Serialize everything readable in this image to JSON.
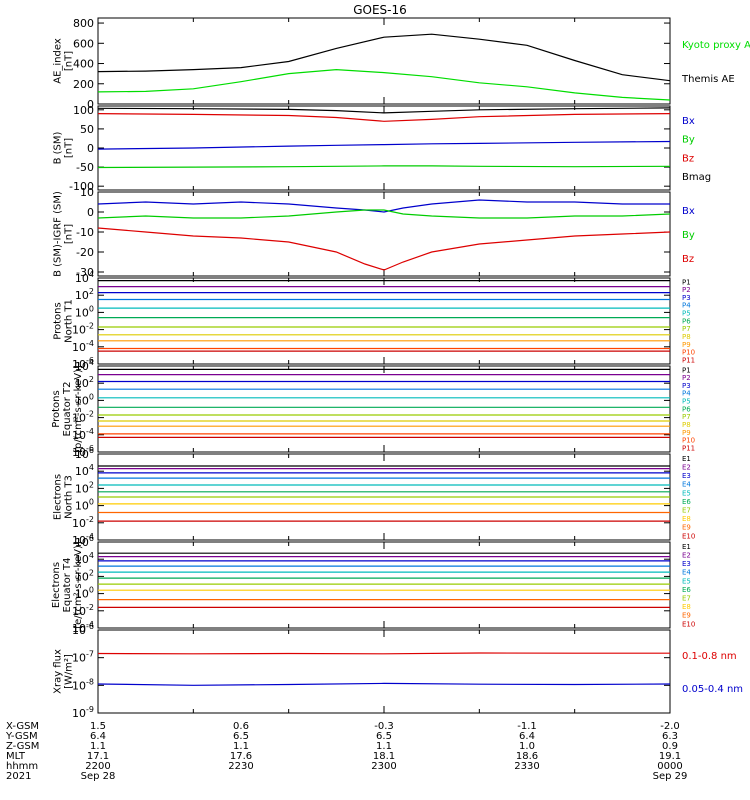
{
  "figure": {
    "title": "GOES-16",
    "x_axis_table": {
      "rows": [
        {
          "label": "X-GSM",
          "values": [
            "1.5",
            "0.6",
            "-0.3",
            "-1.1",
            "-2.0"
          ]
        },
        {
          "label": "Y-GSM",
          "values": [
            "6.4",
            "6.5",
            "6.5",
            "6.4",
            "6.3"
          ]
        },
        {
          "label": "Z-GSM",
          "values": [
            "1.1",
            "1.1",
            "1.1",
            "1.0",
            "0.9"
          ]
        },
        {
          "label": "MLT",
          "values": [
            "17.1",
            "17.6",
            "18.1",
            "18.6",
            "19.1"
          ]
        },
        {
          "label": "hhmm",
          "values": [
            "2200",
            "2230",
            "2300",
            "2330",
            "0000"
          ]
        },
        {
          "label": "2021",
          "values": [
            "Sep 28",
            "",
            "",
            "",
            "Sep 29"
          ]
        }
      ]
    }
  },
  "chart_data": [
    {
      "id": "ae",
      "type": "line",
      "ylabel": [
        "AE_index",
        "[nT]"
      ],
      "scale": "linear",
      "ylim": [
        0,
        850
      ],
      "ticks": [
        0,
        200,
        400,
        600,
        800
      ],
      "tick_labels": [
        "0",
        "200",
        "400",
        "600",
        "800"
      ],
      "x": [
        0,
        5,
        10,
        15,
        20,
        25,
        30,
        35,
        40,
        45,
        50,
        55,
        60
      ],
      "series": [
        {
          "name": "Themis AE",
          "color": "#000000",
          "values": [
            320,
            325,
            340,
            360,
            420,
            550,
            660,
            690,
            640,
            580,
            430,
            290,
            230
          ]
        },
        {
          "name": "Kyoto proxy AE",
          "color": "#00dd00",
          "values": [
            120,
            125,
            150,
            220,
            300,
            340,
            310,
            270,
            210,
            170,
            110,
            65,
            40
          ]
        }
      ],
      "legend": [
        {
          "label": "Kyoto proxy AE",
          "color": "#00dd00"
        },
        {
          "label": "Themis AE",
          "color": "#000000"
        }
      ]
    },
    {
      "id": "bsm",
      "type": "line",
      "ylabel": [
        "B (SM)",
        "[nT]"
      ],
      "scale": "linear",
      "ylim": [
        -110,
        110
      ],
      "ticks": [
        -100,
        -50,
        0,
        50,
        100
      ],
      "tick_labels": [
        "-100",
        "-50",
        "0",
        "50",
        "100"
      ],
      "x": [
        0,
        10,
        20,
        25,
        30,
        35,
        40,
        50,
        60
      ],
      "series": [
        {
          "name": "Bx",
          "color": "#0000cc",
          "values": [
            -3,
            0,
            5,
            7,
            9,
            11,
            12,
            15,
            17
          ]
        },
        {
          "name": "By",
          "color": "#00cc00",
          "values": [
            -51,
            -50,
            -49,
            -48,
            -47,
            -47,
            -48,
            -49,
            -48
          ]
        },
        {
          "name": "Bz",
          "color": "#dd0000",
          "values": [
            90,
            88,
            85,
            80,
            70,
            75,
            82,
            88,
            90
          ]
        },
        {
          "name": "Bmag",
          "color": "#000000",
          "values": [
            104,
            103,
            101,
            98,
            92,
            96,
            100,
            103,
            105
          ]
        }
      ],
      "legend": [
        {
          "label": "Bx",
          "color": "#0000cc"
        },
        {
          "label": "By",
          "color": "#00cc00"
        },
        {
          "label": "Bz",
          "color": "#dd0000"
        },
        {
          "label": "Bmag",
          "color": "#000000"
        }
      ]
    },
    {
      "id": "igrf",
      "type": "line",
      "ylabel": [
        "B (SM)-IGRF (SM)",
        "[nT]"
      ],
      "scale": "linear",
      "ylim": [
        -32,
        10
      ],
      "ticks": [
        -30,
        -20,
        -10,
        0,
        10
      ],
      "tick_labels": [
        "-30",
        "-20",
        "-10",
        "0",
        "10"
      ],
      "x": [
        0,
        5,
        10,
        15,
        20,
        25,
        28,
        30,
        32,
        35,
        40,
        45,
        50,
        55,
        60
      ],
      "series": [
        {
          "name": "Bx",
          "color": "#0000cc",
          "values": [
            4,
            5,
            4,
            5,
            4,
            2,
            1,
            0,
            2,
            4,
            6,
            5,
            5,
            4,
            4
          ]
        },
        {
          "name": "By",
          "color": "#00cc00",
          "values": [
            -3,
            -2,
            -3,
            -3,
            -2,
            0,
            1,
            1,
            -1,
            -2,
            -3,
            -3,
            -2,
            -2,
            -1
          ]
        },
        {
          "name": "Bz",
          "color": "#dd0000",
          "values": [
            -8,
            -10,
            -12,
            -13,
            -15,
            -20,
            -26,
            -29,
            -25,
            -20,
            -16,
            -14,
            -12,
            -11,
            -10
          ]
        }
      ],
      "legend": [
        {
          "label": "Bx",
          "color": "#0000cc"
        },
        {
          "label": "By",
          "color": "#00cc00"
        },
        {
          "label": "Bz",
          "color": "#dd0000"
        }
      ]
    },
    {
      "id": "protons_north",
      "type": "line",
      "ylabel": [
        "Protons",
        "North T1"
      ],
      "scale": "log",
      "ylim": [
        -6,
        4
      ],
      "ticks": [
        4,
        2,
        0,
        -2,
        -4,
        -6
      ],
      "tick_base": "10",
      "tick_exponents": [
        "4",
        "2",
        "0",
        "-2",
        "-4",
        "-6"
      ],
      "x": [
        0,
        60
      ],
      "series": [
        {
          "name": "P1",
          "color": "#000000",
          "values": [
            3.7,
            3.7
          ]
        },
        {
          "name": "P2",
          "color": "#7a0090",
          "values": [
            3.0,
            3.0
          ]
        },
        {
          "name": "P3",
          "color": "#0000cc",
          "values": [
            2.3,
            2.3
          ]
        },
        {
          "name": "P4",
          "color": "#0077dd",
          "values": [
            1.5,
            1.5
          ]
        },
        {
          "name": "P5",
          "color": "#00bbbb",
          "values": [
            0.5,
            0.5
          ]
        },
        {
          "name": "P6",
          "color": "#00aa55",
          "values": [
            -0.6,
            -0.6
          ]
        },
        {
          "name": "P7",
          "color": "#99cc00",
          "values": [
            -1.7,
            -1.7
          ]
        },
        {
          "name": "P8",
          "color": "#ddcc00",
          "values": [
            -2.6,
            -2.6
          ]
        },
        {
          "name": "P9",
          "color": "#ff9900",
          "values": [
            -3.3,
            -3.3
          ]
        },
        {
          "name": "P10",
          "color": "#ff4400",
          "values": [
            -4.2,
            -4.2
          ]
        },
        {
          "name": "P11",
          "color": "#cc0000",
          "values": [
            -4.5,
            -4.5
          ]
        }
      ],
      "legend": [
        {
          "label": "P1",
          "color": "#000000"
        },
        {
          "label": "P2",
          "color": "#7a0090"
        },
        {
          "label": "P3",
          "color": "#0000cc"
        },
        {
          "label": "P4",
          "color": "#0077dd"
        },
        {
          "label": "P5",
          "color": "#00bbbb"
        },
        {
          "label": "P6",
          "color": "#00aa55"
        },
        {
          "label": "P7",
          "color": "#99cc00"
        },
        {
          "label": "P8",
          "color": "#ddcc00"
        },
        {
          "label": "P9",
          "color": "#ff9900"
        },
        {
          "label": "P10",
          "color": "#ff4400"
        },
        {
          "label": "P11",
          "color": "#cc0000"
        }
      ]
    },
    {
      "id": "protons_equator",
      "type": "line",
      "ylabel": [
        "Protons",
        "Equator T2",
        "[p/(cm²-s-sr-keV)]"
      ],
      "scale": "log",
      "ylim": [
        -6,
        4
      ],
      "ticks": [
        4,
        2,
        0,
        -2,
        -4,
        -6
      ],
      "tick_base": "10",
      "tick_exponents": [
        "4",
        "2",
        "0",
        "-2",
        "-4",
        "-6"
      ],
      "x": [
        0,
        60
      ],
      "series": [
        {
          "name": "P1",
          "color": "#000000",
          "values": [
            3.6,
            3.6
          ]
        },
        {
          "name": "P2",
          "color": "#7a0090",
          "values": [
            3.0,
            3.0
          ]
        },
        {
          "name": "P3",
          "color": "#0000cc",
          "values": [
            2.2,
            2.2
          ]
        },
        {
          "name": "P4",
          "color": "#0077dd",
          "values": [
            1.3,
            1.3
          ]
        },
        {
          "name": "P5",
          "color": "#00bbbb",
          "values": [
            0.3,
            0.3
          ]
        },
        {
          "name": "P6",
          "color": "#00aa55",
          "values": [
            -0.8,
            -0.8
          ]
        },
        {
          "name": "P7",
          "color": "#99cc00",
          "values": [
            -1.7,
            -1.7
          ]
        },
        {
          "name": "P8",
          "color": "#ddcc00",
          "values": [
            -2.4,
            -2.4
          ]
        },
        {
          "name": "P9",
          "color": "#ff9900",
          "values": [
            -3.0,
            -3.0
          ]
        },
        {
          "name": "P10",
          "color": "#ff4400",
          "values": [
            -3.9,
            -3.9
          ]
        },
        {
          "name": "P11",
          "color": "#cc0000",
          "values": [
            -4.3,
            -4.3
          ]
        }
      ],
      "legend": [
        {
          "label": "P1",
          "color": "#000000"
        },
        {
          "label": "P2",
          "color": "#7a0090"
        },
        {
          "label": "P3",
          "color": "#0000cc"
        },
        {
          "label": "P4",
          "color": "#0077dd"
        },
        {
          "label": "P5",
          "color": "#00bbbb"
        },
        {
          "label": "P6",
          "color": "#00aa55"
        },
        {
          "label": "P7",
          "color": "#99cc00"
        },
        {
          "label": "P8",
          "color": "#ddcc00"
        },
        {
          "label": "P9",
          "color": "#ff9900"
        },
        {
          "label": "P10",
          "color": "#ff4400"
        },
        {
          "label": "P11",
          "color": "#cc0000"
        }
      ]
    },
    {
      "id": "electrons_north",
      "type": "line",
      "ylabel": [
        "Electrons",
        "North T3"
      ],
      "scale": "log",
      "ylim": [
        -4,
        6
      ],
      "ticks": [
        6,
        4,
        2,
        0,
        -2,
        -4
      ],
      "tick_base": "10",
      "tick_exponents": [
        "6",
        "4",
        "2",
        "0",
        "-2",
        "-4"
      ],
      "x": [
        0,
        60
      ],
      "series": [
        {
          "name": "E1",
          "color": "#000000",
          "values": [
            4.6,
            4.6
          ]
        },
        {
          "name": "E2",
          "color": "#7a0090",
          "values": [
            4.3,
            4.3
          ]
        },
        {
          "name": "E3",
          "color": "#0000cc",
          "values": [
            3.8,
            3.8
          ]
        },
        {
          "name": "E4",
          "color": "#0077dd",
          "values": [
            3.2,
            3.2
          ]
        },
        {
          "name": "E5",
          "color": "#00bbbb",
          "values": [
            2.4,
            2.4
          ]
        },
        {
          "name": "E6",
          "color": "#00aa55",
          "values": [
            1.6,
            1.6
          ]
        },
        {
          "name": "E7",
          "color": "#99cc00",
          "values": [
            1.0,
            1.0
          ]
        },
        {
          "name": "E8",
          "color": "#ffcc00",
          "values": [
            0.2,
            0.2
          ]
        },
        {
          "name": "E9",
          "color": "#ff6600",
          "values": [
            -0.8,
            -0.8
          ]
        },
        {
          "name": "E10",
          "color": "#cc0000",
          "values": [
            -1.8,
            -1.8
          ]
        }
      ],
      "legend": [
        {
          "label": "E1",
          "color": "#000000"
        },
        {
          "label": "E2",
          "color": "#7a0090"
        },
        {
          "label": "E3",
          "color": "#0000cc"
        },
        {
          "label": "E4",
          "color": "#0077dd"
        },
        {
          "label": "E5",
          "color": "#00bbbb"
        },
        {
          "label": "E6",
          "color": "#00aa55"
        },
        {
          "label": "E7",
          "color": "#99cc00"
        },
        {
          "label": "E8",
          "color": "#ffcc00"
        },
        {
          "label": "E9",
          "color": "#ff6600"
        },
        {
          "label": "E10",
          "color": "#cc0000"
        }
      ]
    },
    {
      "id": "electrons_equator",
      "type": "line",
      "ylabel": [
        "Electrons",
        "Equator T4",
        "[e/(cm²-s-sr-keV)]"
      ],
      "scale": "log",
      "ylim": [
        -4,
        6
      ],
      "ticks": [
        6,
        4,
        2,
        0,
        -2,
        -4
      ],
      "tick_base": "10",
      "tick_exponents": [
        "6",
        "4",
        "2",
        "0",
        "-2",
        "-4"
      ],
      "x": [
        0,
        60
      ],
      "series": [
        {
          "name": "E1",
          "color": "#000000",
          "values": [
            4.7,
            4.7
          ]
        },
        {
          "name": "E2",
          "color": "#7a0090",
          "values": [
            4.3,
            4.3
          ]
        },
        {
          "name": "E3",
          "color": "#0000cc",
          "values": [
            3.8,
            3.8
          ]
        },
        {
          "name": "E4",
          "color": "#0077dd",
          "values": [
            3.2,
            3.2
          ]
        },
        {
          "name": "E5",
          "color": "#00bbbb",
          "values": [
            2.5,
            2.5
          ]
        },
        {
          "name": "E6",
          "color": "#00aa55",
          "values": [
            1.8,
            1.8
          ]
        },
        {
          "name": "E7",
          "color": "#99cc00",
          "values": [
            1.1,
            1.1
          ]
        },
        {
          "name": "E8",
          "color": "#ffcc00",
          "values": [
            0.4,
            0.4
          ]
        },
        {
          "name": "E9",
          "color": "#ff6600",
          "values": [
            -0.7,
            -0.7
          ]
        },
        {
          "name": "E10",
          "color": "#cc0000",
          "values": [
            -1.6,
            -1.6
          ]
        }
      ],
      "legend": [
        {
          "label": "E1",
          "color": "#000000"
        },
        {
          "label": "E2",
          "color": "#7a0090"
        },
        {
          "label": "E3",
          "color": "#0000cc"
        },
        {
          "label": "E4",
          "color": "#0077dd"
        },
        {
          "label": "E5",
          "color": "#00bbbb"
        },
        {
          "label": "E6",
          "color": "#00aa55"
        },
        {
          "label": "E7",
          "color": "#99cc00"
        },
        {
          "label": "E8",
          "color": "#ffcc00"
        },
        {
          "label": "E9",
          "color": "#ff6600"
        },
        {
          "label": "E10",
          "color": "#cc0000"
        }
      ]
    },
    {
      "id": "xray",
      "type": "line",
      "ylabel": [
        "Xray flux",
        "[W/m²]"
      ],
      "scale": "log",
      "ylim": [
        -9,
        -6
      ],
      "ticks": [
        -6,
        -7,
        -8,
        -9
      ],
      "tick_base": "10",
      "tick_exponents": [
        "-6",
        "-7",
        "-8",
        "-9"
      ],
      "x": [
        0,
        10,
        20,
        30,
        40,
        50,
        60
      ],
      "series": [
        {
          "name": "0.1-0.8 nm",
          "color": "#dd0000",
          "values": [
            -6.85,
            -6.86,
            -6.85,
            -6.86,
            -6.83,
            -6.84,
            -6.84
          ]
        },
        {
          "name": "0.05-0.4 nm",
          "color": "#0000cc",
          "values": [
            -7.95,
            -8.0,
            -7.97,
            -7.93,
            -7.96,
            -7.97,
            -7.95
          ]
        }
      ],
      "legend": [
        {
          "label": "0.1-0.8 nm",
          "color": "#dd0000"
        },
        {
          "label": "0.05-0.4 nm",
          "color": "#0000cc"
        }
      ]
    }
  ]
}
